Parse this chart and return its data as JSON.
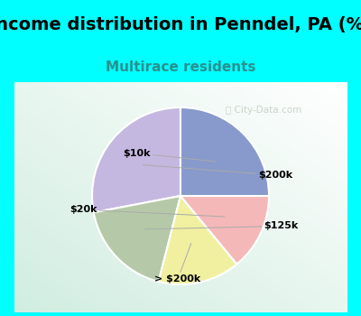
{
  "title": "Income distribution in Penndel, PA (%)",
  "subtitle": "Multirace residents",
  "watermark": "City-Data.com",
  "labels": [
    "$200k",
    "$125k",
    "> $200k",
    "$20k",
    "$10k"
  ],
  "sizes": [
    28,
    18,
    15,
    14,
    25
  ],
  "colors": [
    "#c5b8e0",
    "#b5c9a8",
    "#f0f0a0",
    "#f5b8b8",
    "#8899cc"
  ],
  "startangle": 90,
  "bg_cyan": "#00ffff",
  "bg_chart_topleft": "#e8f5ee",
  "bg_chart_bottomright": "#d0ead8",
  "title_fontsize": 14,
  "subtitle_fontsize": 11,
  "subtitle_color": "#2a9090",
  "label_fontsize": 8,
  "watermark_color": "#aabbaa"
}
